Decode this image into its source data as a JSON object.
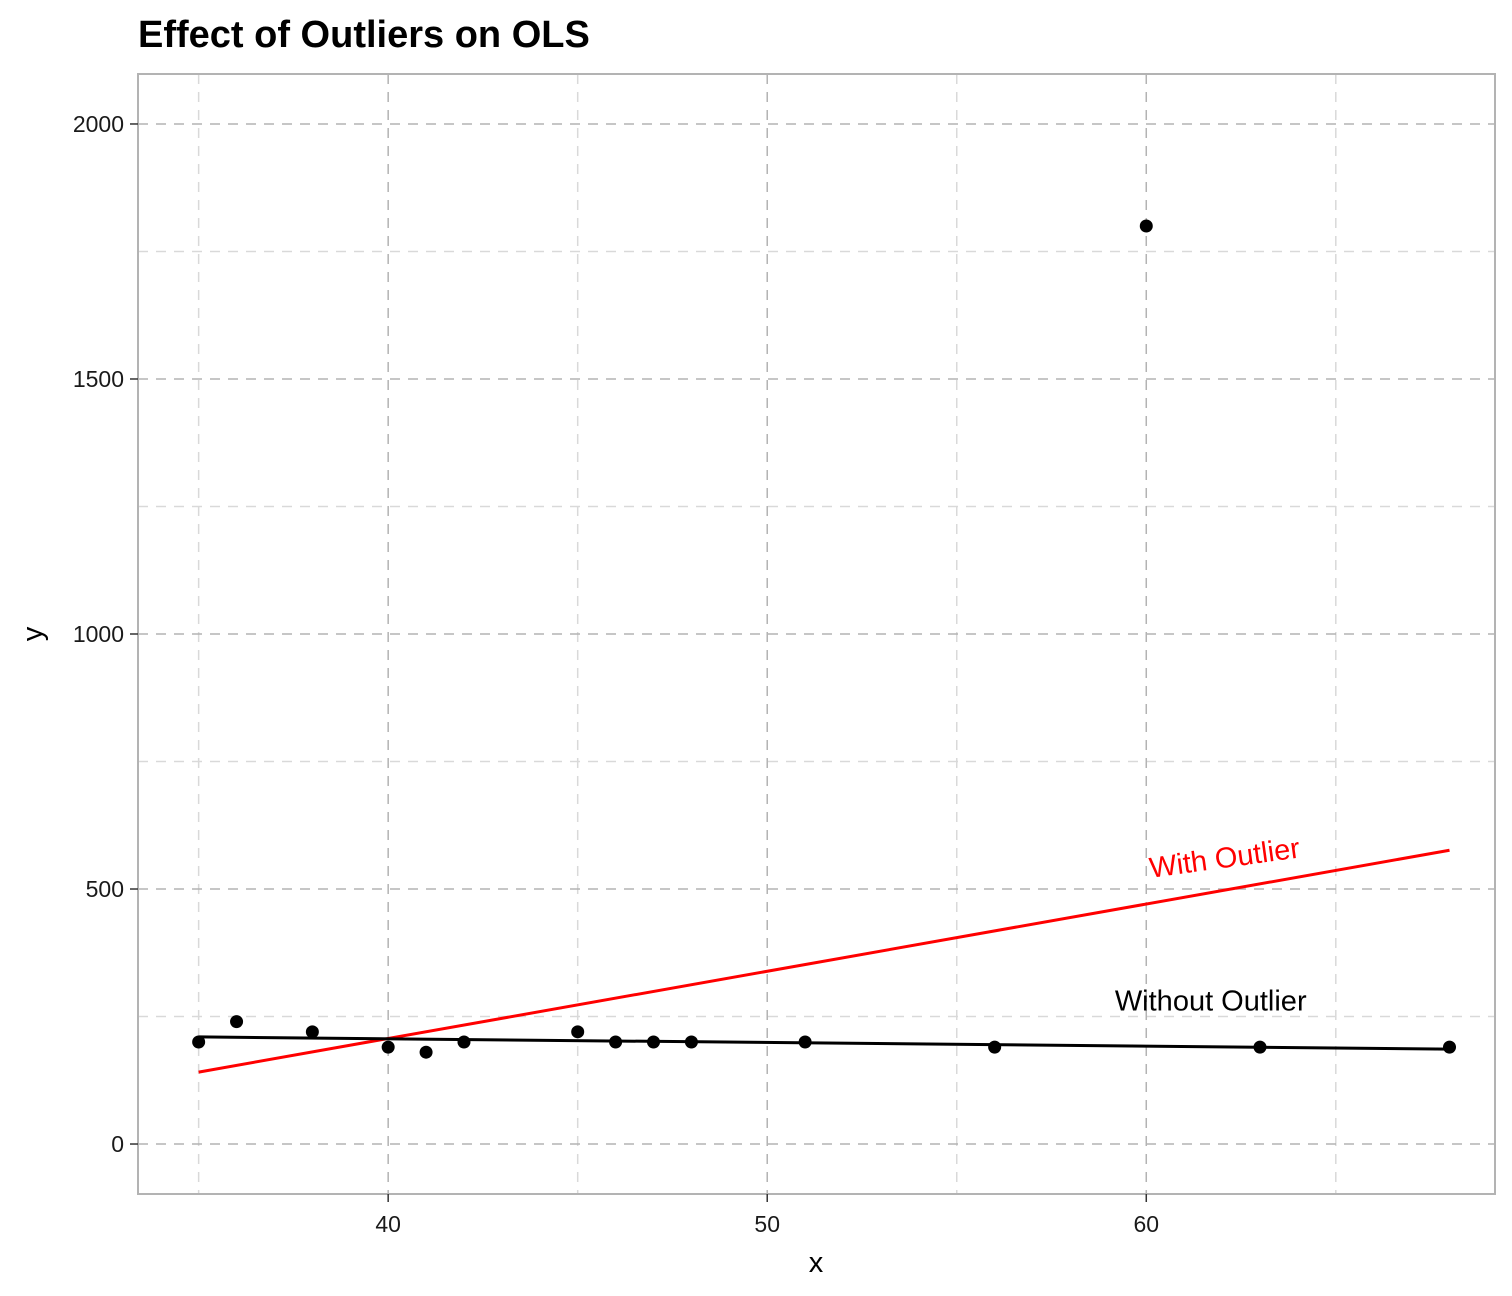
{
  "chart_data": {
    "type": "scatter",
    "title": "Effect of Outliers on OLS",
    "xlabel": "x",
    "ylabel": "y",
    "xlim": [
      33.4,
      69.2
    ],
    "ylim": [
      -98,
      2098
    ],
    "x_ticks": [
      40,
      50,
      60
    ],
    "y_ticks": [
      0,
      500,
      1000,
      1500,
      2000
    ],
    "x_minor": [
      35,
      45,
      55,
      65
    ],
    "y_minor": [
      250,
      750,
      1250,
      1750
    ],
    "grid": true,
    "points": [
      {
        "x": 35,
        "y": 200
      },
      {
        "x": 36,
        "y": 240
      },
      {
        "x": 38,
        "y": 220
      },
      {
        "x": 40,
        "y": 190
      },
      {
        "x": 41,
        "y": 180
      },
      {
        "x": 42,
        "y": 200
      },
      {
        "x": 45,
        "y": 220
      },
      {
        "x": 46,
        "y": 200
      },
      {
        "x": 47,
        "y": 200
      },
      {
        "x": 48,
        "y": 200
      },
      {
        "x": 51,
        "y": 200
      },
      {
        "x": 56,
        "y": 190
      },
      {
        "x": 60,
        "y": 1800
      },
      {
        "x": 63,
        "y": 190
      },
      {
        "x": 68,
        "y": 190
      }
    ],
    "lines": [
      {
        "name": "With Outlier",
        "color": "#ff0000",
        "x": [
          35,
          68
        ],
        "y": [
          141,
          576
        ]
      },
      {
        "name": "Without Outlier",
        "color": "#000000",
        "x": [
          35,
          68
        ],
        "y": [
          210,
          186
        ]
      }
    ],
    "annotations": [
      {
        "text": "With Outlier",
        "x": 62.1,
        "y": 542,
        "color": "#ff0000",
        "angle": -7.8
      },
      {
        "text": "Without Outlier",
        "x": 61.7,
        "y": 262,
        "color": "#000000",
        "angle": 0
      }
    ]
  }
}
